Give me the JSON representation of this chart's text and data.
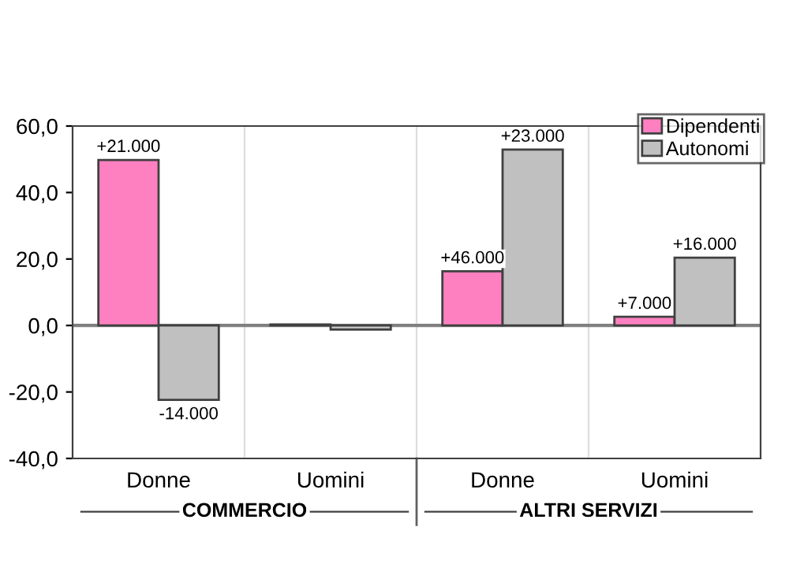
{
  "chart_data": {
    "type": "bar",
    "categories": [
      "Donne",
      "Uomini",
      "Donne",
      "Uomini"
    ],
    "series": [
      {
        "name": "Dipendenti",
        "color": "#ff80c0",
        "values": [
          49.8,
          0.3,
          16.3,
          2.6
        ]
      },
      {
        "name": "Autonomi",
        "color": "#c0c0c0",
        "values": [
          -22.4,
          -1.2,
          52.9,
          20.4
        ]
      }
    ],
    "ylim": [
      -40,
      60
    ],
    "yticks": [
      {
        "value": -40,
        "label": "-40,0"
      },
      {
        "value": -20,
        "label": "-20,0"
      },
      {
        "value": 0,
        "label": "0,0"
      },
      {
        "value": 20,
        "label": "20,0"
      },
      {
        "value": 40,
        "label": "40,0"
      },
      {
        "value": 60,
        "label": "60,0"
      }
    ],
    "annotations": [
      {
        "text": "+21.000",
        "y": 49.8
      },
      {
        "text": "-14.000",
        "y": -22.4
      },
      {
        "text": "+46.000",
        "y": 16.3
      },
      {
        "text": "+23.000",
        "y": 52.9
      },
      {
        "text": "+7.000",
        "y": 2.6
      },
      {
        "text": "+16.000",
        "y": 20.4
      },
      "COMMERCIO",
      "ALTRI SERVIZI"
    ],
    "grid": "x",
    "legend": "top right"
  }
}
